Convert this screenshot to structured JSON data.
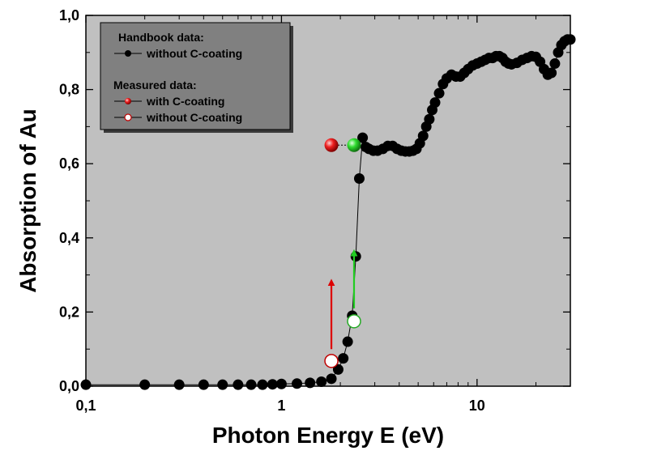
{
  "chart_data": {
    "type": "scatter",
    "x_scale": "log",
    "xlabel": "Photon Energy E (eV)",
    "ylabel": "Absorption of Au",
    "xlim": [
      0.1,
      30
    ],
    "ylim": [
      0,
      1.0
    ],
    "x_ticks": [
      {
        "value": 0.1,
        "label": "0,1"
      },
      {
        "value": 1,
        "label": "1"
      },
      {
        "value": 10,
        "label": "10"
      }
    ],
    "y_ticks": [
      {
        "value": 0.0,
        "label": "0,0"
      },
      {
        "value": 0.2,
        "label": "0,2"
      },
      {
        "value": 0.4,
        "label": "0,4"
      },
      {
        "value": 0.6,
        "label": "0,6"
      },
      {
        "value": 0.8,
        "label": "0,8"
      },
      {
        "value": 1.0,
        "label": "1,0"
      }
    ],
    "plot_background": "#c0c0c0",
    "legend": {
      "placement": "top-left",
      "background": "#808080",
      "headers": [
        "Handbook data:",
        "Measured data:"
      ],
      "entries": [
        {
          "label": "without C-coating",
          "group": 0,
          "color": "#000000",
          "marker": "filled"
        },
        {
          "label": "with C-coating",
          "group": 1,
          "color": "#e01010",
          "marker": "filled"
        },
        {
          "label": "without C-coating",
          "group": 1,
          "color": "#c00000",
          "marker": "open"
        }
      ]
    },
    "series": [
      {
        "group": "Handbook data",
        "name": "without C-coating",
        "color": "#000000",
        "marker": "filled",
        "points": [
          [
            0.1,
            0.004
          ],
          [
            0.2,
            0.004
          ],
          [
            0.3,
            0.004
          ],
          [
            0.4,
            0.004
          ],
          [
            0.5,
            0.004
          ],
          [
            0.6,
            0.004
          ],
          [
            0.7,
            0.004
          ],
          [
            0.8,
            0.004
          ],
          [
            0.9,
            0.005
          ],
          [
            1.0,
            0.006
          ],
          [
            1.2,
            0.007
          ],
          [
            1.4,
            0.009
          ],
          [
            1.6,
            0.012
          ],
          [
            1.8,
            0.02
          ],
          [
            1.95,
            0.045
          ],
          [
            2.07,
            0.075
          ],
          [
            2.18,
            0.12
          ],
          [
            2.3,
            0.19
          ],
          [
            2.4,
            0.35
          ],
          [
            2.5,
            0.56
          ],
          [
            2.6,
            0.67
          ],
          [
            2.7,
            0.645
          ],
          [
            2.8,
            0.64
          ],
          [
            2.95,
            0.635
          ],
          [
            3.1,
            0.635
          ],
          [
            3.3,
            0.64
          ],
          [
            3.5,
            0.648
          ],
          [
            3.7,
            0.648
          ],
          [
            3.9,
            0.64
          ],
          [
            4.1,
            0.635
          ],
          [
            4.3,
            0.633
          ],
          [
            4.5,
            0.633
          ],
          [
            4.7,
            0.635
          ],
          [
            4.9,
            0.64
          ],
          [
            5.1,
            0.655
          ],
          [
            5.3,
            0.675
          ],
          [
            5.5,
            0.7
          ],
          [
            5.7,
            0.72
          ],
          [
            5.9,
            0.745
          ],
          [
            6.1,
            0.765
          ],
          [
            6.4,
            0.79
          ],
          [
            6.7,
            0.815
          ],
          [
            7.0,
            0.83
          ],
          [
            7.4,
            0.84
          ],
          [
            7.8,
            0.835
          ],
          [
            8.2,
            0.835
          ],
          [
            8.6,
            0.845
          ],
          [
            9.0,
            0.855
          ],
          [
            9.5,
            0.865
          ],
          [
            10.0,
            0.87
          ],
          [
            10.5,
            0.875
          ],
          [
            11.0,
            0.88
          ],
          [
            11.5,
            0.885
          ],
          [
            12.0,
            0.885
          ],
          [
            12.5,
            0.89
          ],
          [
            13.0,
            0.89
          ],
          [
            13.5,
            0.885
          ],
          [
            14.0,
            0.875
          ],
          [
            14.5,
            0.87
          ],
          [
            15.0,
            0.868
          ],
          [
            16.0,
            0.872
          ],
          [
            17.0,
            0.88
          ],
          [
            18.0,
            0.885
          ],
          [
            19.0,
            0.89
          ],
          [
            20.0,
            0.888
          ],
          [
            21.0,
            0.875
          ],
          [
            22.0,
            0.855
          ],
          [
            23.0,
            0.84
          ],
          [
            24.0,
            0.845
          ],
          [
            25.0,
            0.87
          ],
          [
            26.0,
            0.9
          ],
          [
            27.0,
            0.92
          ],
          [
            28.0,
            0.93
          ],
          [
            29.0,
            0.935
          ],
          [
            30.0,
            0.935
          ]
        ]
      },
      {
        "group": "Measured data",
        "name": "with C-coating",
        "marker": "filled",
        "points": [
          {
            "x": 1.8,
            "y": 0.65,
            "color": "#e01010"
          },
          {
            "x": 2.35,
            "y": 0.65,
            "color": "#22cc22"
          }
        ]
      },
      {
        "group": "Measured data",
        "name": "without C-coating",
        "marker": "open",
        "points": [
          {
            "x": 1.8,
            "y": 0.068,
            "color": "#c00000"
          },
          {
            "x": 2.35,
            "y": 0.175,
            "color": "#22aa22"
          }
        ]
      }
    ],
    "annotations": [
      {
        "type": "arrow",
        "x": 1.8,
        "y_from": 0.1,
        "y_to": 0.28,
        "color": "#dd0000"
      },
      {
        "type": "arrow",
        "x": 2.35,
        "y_from": 0.21,
        "y_to": 0.36,
        "color": "#22cc22"
      }
    ]
  }
}
